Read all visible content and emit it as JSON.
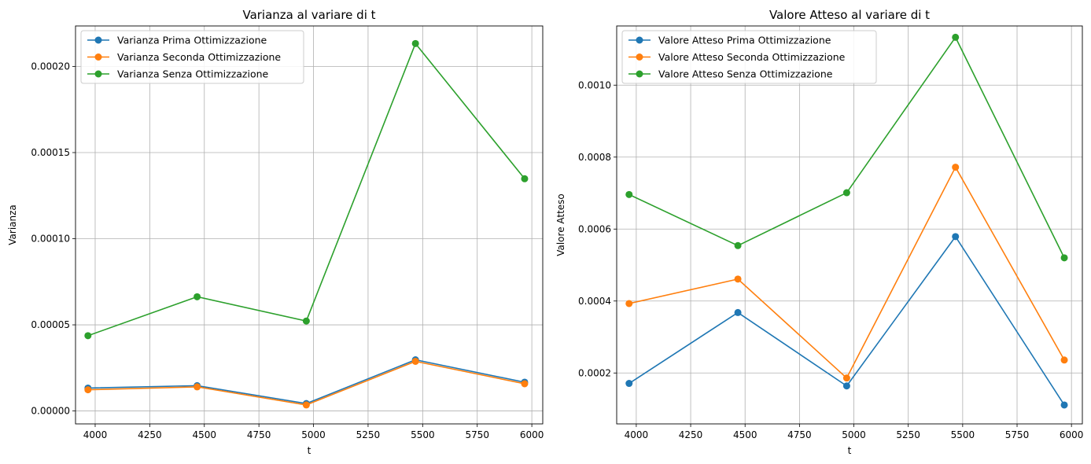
{
  "chart_data": [
    {
      "type": "line",
      "title": "Varianza al variare di t",
      "xlabel": "t",
      "ylabel": "Varianza",
      "x": [
        3967,
        4467,
        4967,
        5467,
        5967
      ],
      "xlim": [
        3910,
        6050
      ],
      "ylim": [
        -7.5e-06,
        0.0002235
      ],
      "xticks": [
        4000,
        4250,
        4500,
        4750,
        5000,
        5250,
        5500,
        5750,
        6000
      ],
      "xtick_labels": [
        "4000",
        "4250",
        "4500",
        "4750",
        "5000",
        "5250",
        "5500",
        "5750",
        "6000"
      ],
      "yticks": [
        0,
        5e-05,
        0.0001,
        0.00015,
        0.0002
      ],
      "ytick_labels": [
        "0.00000",
        "0.00005",
        "0.00010",
        "0.00015",
        "0.00020"
      ],
      "grid": true,
      "legend_position": "top-left",
      "series": [
        {
          "name": "Varianza Prima Ottimizzazione",
          "color": "#1f77b4",
          "values": [
            1.33e-05,
            1.47e-05,
            4.3e-06,
            2.97e-05,
            1.67e-05
          ]
        },
        {
          "name": "Varianza Seconda Ottimizzazione",
          "color": "#ff7f0e",
          "values": [
            1.23e-05,
            1.4e-05,
            3.5e-06,
            2.88e-05,
            1.58e-05
          ]
        },
        {
          "name": "Varianza Senza Ottimizzazione",
          "color": "#2ca02c",
          "values": [
            4.37e-05,
            6.63e-05,
            5.22e-05,
            0.0002133,
            0.0001348
          ]
        }
      ]
    },
    {
      "type": "line",
      "title": "Valore Atteso al variare di t",
      "xlabel": "t",
      "ylabel": "Valore Atteso",
      "x": [
        3967,
        4467,
        4967,
        5467,
        5967
      ],
      "xlim": [
        3910,
        6050
      ],
      "ylim": [
        5.85e-05,
        0.0011645
      ],
      "xticks": [
        4000,
        4250,
        4500,
        4750,
        5000,
        5250,
        5500,
        5750,
        6000
      ],
      "xtick_labels": [
        "4000",
        "4250",
        "4500",
        "4750",
        "5000",
        "5250",
        "5500",
        "5750",
        "6000"
      ],
      "yticks": [
        0.0002,
        0.0004,
        0.0006,
        0.0008,
        0.001
      ],
      "ytick_labels": [
        "0.0002",
        "0.0004",
        "0.0006",
        "0.0008",
        "0.0010"
      ],
      "grid": true,
      "legend_position": "top-left",
      "series": [
        {
          "name": "Valore Atteso Prima Ottimizzazione",
          "color": "#1f77b4",
          "values": [
            0.000171,
            0.000368,
            0.000164,
            0.000579,
            0.000111
          ]
        },
        {
          "name": "Valore Atteso Seconda Ottimizzazione",
          "color": "#ff7f0e",
          "values": [
            0.000393,
            0.000461,
            0.000186,
            0.000772,
            0.000236
          ]
        },
        {
          "name": "Valore Atteso Senza Ottimizzazione",
          "color": "#2ca02c",
          "values": [
            0.000696,
            0.000554,
            0.000701,
            0.001133,
            0.00052
          ]
        }
      ]
    }
  ]
}
